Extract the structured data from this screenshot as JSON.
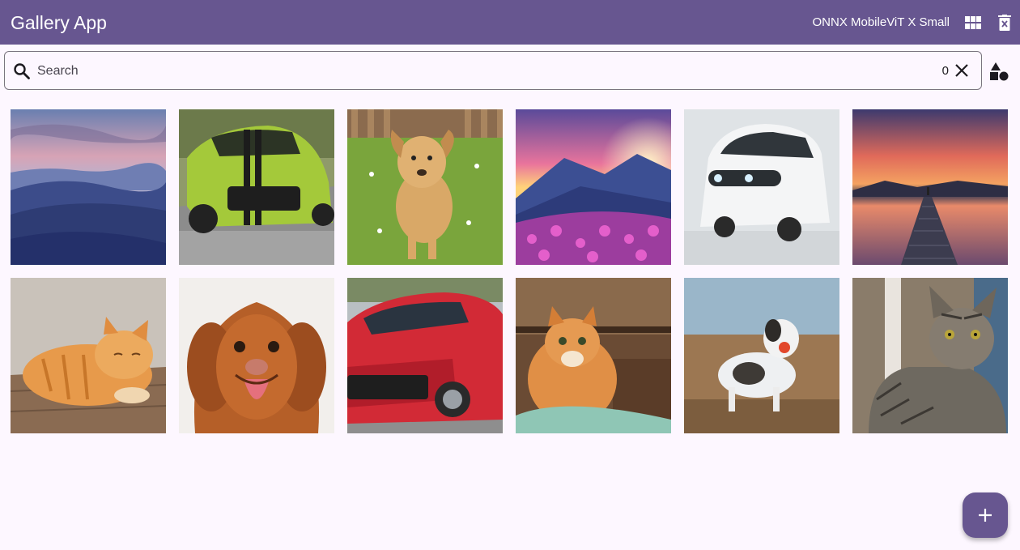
{
  "app": {
    "title": "Gallery App",
    "model_label": "ONNX MobileViT X Small",
    "accent_color": "#675690",
    "background_color": "#fdf7ff"
  },
  "toolbar": {
    "grid_view_icon": "grid-icon",
    "delete_icon": "trash-icon"
  },
  "search": {
    "placeholder": "Search",
    "value": "",
    "result_count": "0",
    "clear_icon": "close-icon",
    "filter_icon": "shapes-icon"
  },
  "gallery": {
    "images": [
      {
        "subject": "desert dunes at dusk"
      },
      {
        "subject": "green sports car"
      },
      {
        "subject": "running puppy"
      },
      {
        "subject": "mountain sunset with flowers"
      },
      {
        "subject": "white compact car"
      },
      {
        "subject": "lake pier at sunset"
      },
      {
        "subject": "sleeping orange cat"
      },
      {
        "subject": "brown dog portrait"
      },
      {
        "subject": "red car"
      },
      {
        "subject": "orange cat on blanket"
      },
      {
        "subject": "dog with ball"
      },
      {
        "subject": "tabby cat"
      }
    ]
  },
  "fab": {
    "icon": "plus-icon"
  }
}
